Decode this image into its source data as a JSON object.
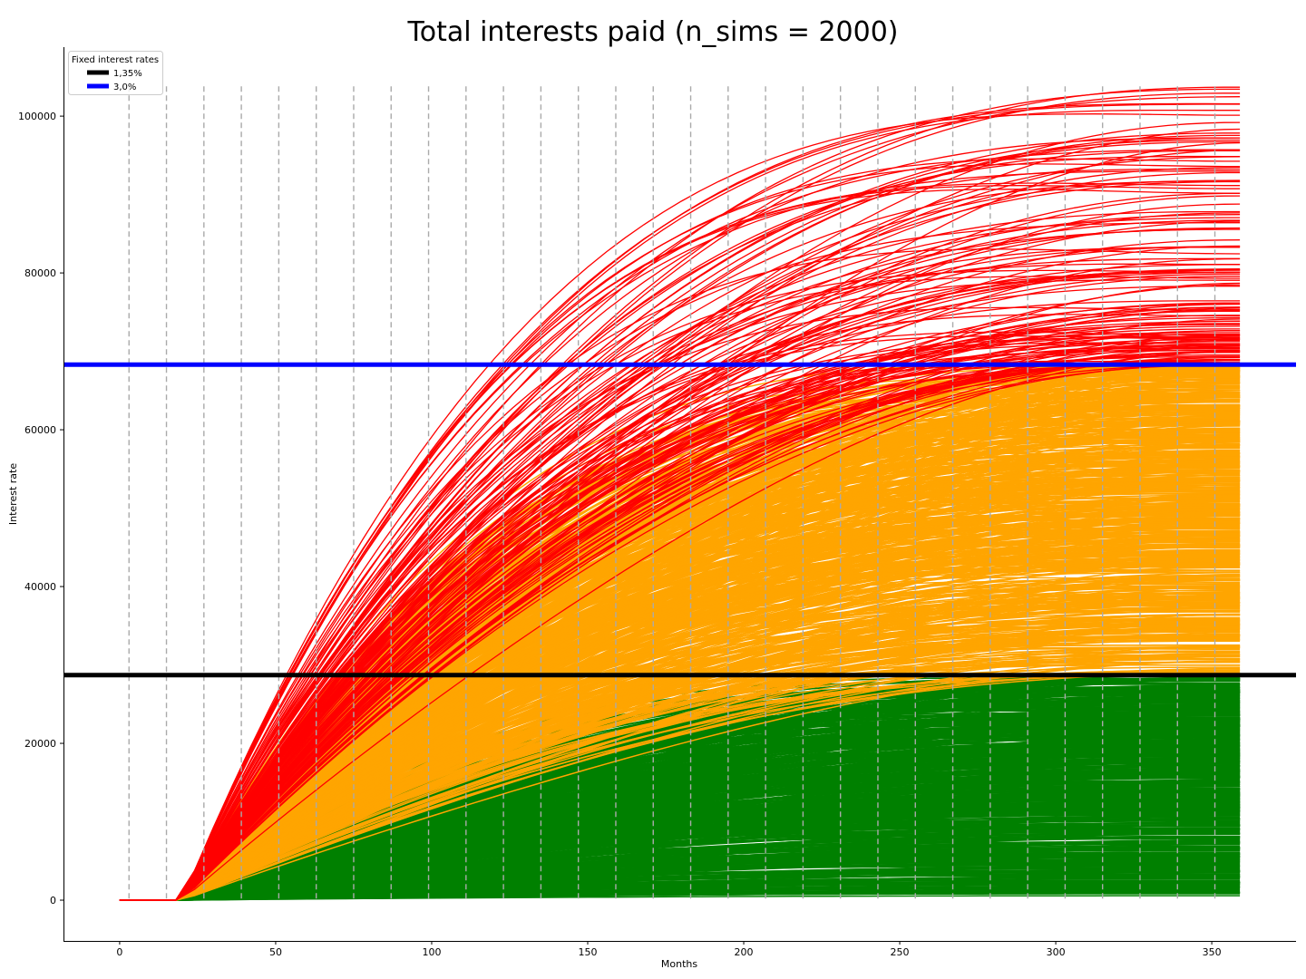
{
  "chart_data": {
    "type": "line",
    "title": "Total interests paid (n_sims = 2000)",
    "xlabel": "Months",
    "ylabel": "Interest rate",
    "xlim": [
      -18,
      377
    ],
    "ylim": [
      -5200,
      108800
    ],
    "x_ticks": [
      0,
      50,
      100,
      150,
      200,
      250,
      300,
      350
    ],
    "y_ticks": [
      0,
      20000,
      40000,
      60000,
      80000,
      100000
    ],
    "x_tick_labels": [
      "0",
      "50",
      "100",
      "150",
      "200",
      "250",
      "300",
      "350"
    ],
    "y_tick_labels": [
      "0",
      "20000",
      "40000",
      "60000",
      "80000",
      "100000"
    ],
    "grid": false,
    "vertical_reference_lines": {
      "style": "dashed",
      "color": "#aaaaaa",
      "x": [
        3,
        15,
        27,
        39,
        51,
        63,
        75,
        87,
        99,
        111,
        123,
        135,
        147,
        159,
        171,
        183,
        195,
        207,
        219,
        231,
        243,
        255,
        267,
        279,
        291,
        303,
        315,
        327,
        339,
        351
      ]
    },
    "fixed_rate_lines": [
      {
        "name": "1,35%",
        "y": 28700,
        "color": "#000000"
      },
      {
        "name": "3,0%",
        "y": 68300,
        "color": "#0000ff"
      }
    ],
    "legend": {
      "title": "Fixed interest rates",
      "placement": "top-left",
      "entries": [
        {
          "label": "1,35%",
          "color": "#000000"
        },
        {
          "label": "3,0%",
          "color": "#0000ff"
        }
      ]
    },
    "simulation_groups": [
      {
        "group": "below 1,35% fixed total",
        "color": "#008000",
        "approx_final_min": 500,
        "approx_final_max": 28700
      },
      {
        "group": "between 1,35% and 3,0% fixed totals",
        "color": "#ffa500",
        "approx_final_min": 28700,
        "approx_final_max": 68300
      },
      {
        "group": "above 3,0% fixed total",
        "color": "#ff0000",
        "approx_final_min": 68300,
        "approx_final_max": 103800
      }
    ],
    "x_start": 0,
    "x_flat_until": 20,
    "x_end": 359
  }
}
